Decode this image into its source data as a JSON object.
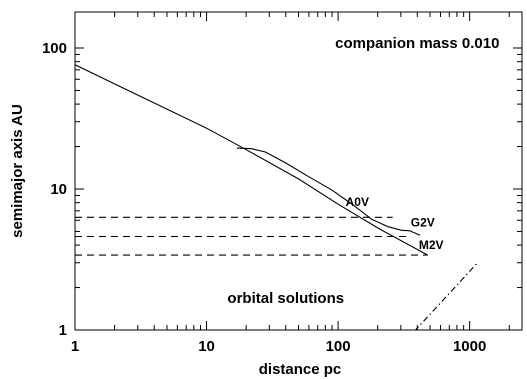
{
  "chart_data": {
    "type": "line",
    "title": "",
    "xlabel": "distance  pc",
    "ylabel": "semimajor axis  AU",
    "xscale": "log",
    "yscale": "log",
    "xlim": [
      1,
      2500
    ],
    "ylim": [
      1,
      180
    ],
    "grid": false,
    "x_ticks": [
      {
        "value": 1,
        "label": "1"
      },
      {
        "value": 10,
        "label": "10"
      },
      {
        "value": 100,
        "label": "100"
      },
      {
        "value": 1000,
        "label": "1000"
      }
    ],
    "y_ticks": [
      {
        "value": 1,
        "label": "1"
      },
      {
        "value": 10,
        "label": "10"
      },
      {
        "value": 100,
        "label": "100"
      }
    ],
    "annotations": [
      {
        "text": "companion mass 0.010",
        "x": 400,
        "y": 100
      },
      {
        "text": "orbital solutions",
        "x": 40,
        "y": 1.55
      }
    ],
    "series": [
      {
        "name": "",
        "style": "solid",
        "points": [
          [
            1,
            76
          ],
          [
            10,
            27
          ],
          [
            20,
            19
          ],
          [
            50,
            11.8
          ],
          [
            100,
            7.8
          ],
          [
            200,
            5.3
          ],
          [
            480,
            3.4
          ]
        ]
      },
      {
        "name": "",
        "style": "solid",
        "points": [
          [
            17,
            19.5
          ],
          [
            22,
            19.3
          ],
          [
            28,
            18.3
          ],
          [
            40,
            15.3
          ],
          [
            60,
            12.2
          ],
          [
            90,
            9.8
          ],
          [
            130,
            7.7
          ],
          [
            180,
            6.1
          ],
          [
            240,
            5.4
          ],
          [
            300,
            5.1
          ],
          [
            350,
            5.05
          ],
          [
            420,
            4.7
          ]
        ]
      },
      {
        "name": "",
        "style": "dashed",
        "points": [
          [
            1,
            6.3
          ],
          [
            260,
            6.3
          ]
        ]
      },
      {
        "name": "",
        "style": "dashed",
        "points": [
          [
            1,
            4.6
          ],
          [
            330,
            4.6
          ]
        ]
      },
      {
        "name": "",
        "style": "dashed",
        "points": [
          [
            1,
            3.4
          ],
          [
            480,
            3.4
          ]
        ]
      },
      {
        "name": "",
        "style": "dashdot",
        "points": [
          [
            380,
            0.98
          ],
          [
            1150,
            3.0
          ]
        ]
      }
    ],
    "curve_labels": [
      {
        "text": "A0V",
        "x": 140,
        "y": 7.6
      },
      {
        "text": "G2V",
        "x": 440,
        "y": 5.4
      },
      {
        "text": "M2V",
        "x": 510,
        "y": 3.75
      }
    ]
  }
}
